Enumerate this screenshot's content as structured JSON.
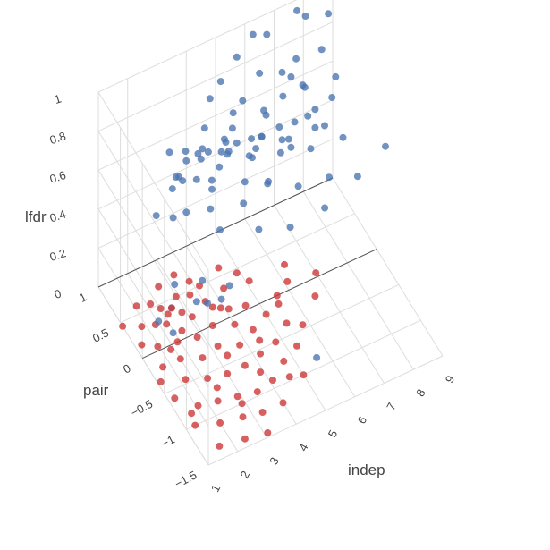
{
  "chart_data": {
    "type": "scatter",
    "projection": "3d",
    "title": "",
    "axes": {
      "x": {
        "label": "indep",
        "range": [
          1,
          9
        ],
        "ticks": [
          "1",
          "2",
          "3",
          "4",
          "5",
          "6",
          "7",
          "8",
          "9"
        ]
      },
      "y": {
        "label": "pair",
        "range": [
          -1.5,
          1
        ],
        "ticks": [
          "−1.5",
          "−1",
          "−0.5",
          "0",
          "0.5",
          "1"
        ]
      },
      "z": {
        "label": "lfdr",
        "range": [
          0,
          1
        ],
        "ticks": [
          "0",
          "0.2",
          "0.4",
          "0.6",
          "0.8",
          "1"
        ]
      }
    },
    "grid": true,
    "legend": "none",
    "colors": {
      "series_blue": "#4a74b0",
      "series_red": "#cc3333",
      "grid": "#dddddd"
    },
    "series": [
      {
        "color": "#4a74b0",
        "points": [
          [
            7.6,
            0.88,
            1.0
          ],
          [
            7.8,
            0.82,
            0.98
          ],
          [
            6.2,
            0.95,
            0.95
          ],
          [
            6.6,
            0.9,
            0.94
          ],
          [
            5.5,
            0.85,
            0.92
          ],
          [
            8.1,
            0.65,
            0.85
          ],
          [
            7.3,
            0.7,
            0.84
          ],
          [
            5.9,
            0.6,
            0.9
          ],
          [
            4.8,
            0.75,
            0.88
          ],
          [
            4.3,
            0.66,
            0.86
          ],
          [
            6.9,
            0.55,
            0.83
          ],
          [
            5.1,
            0.45,
            0.87
          ],
          [
            7.0,
            0.3,
            0.86
          ],
          [
            6.4,
            0.4,
            0.82
          ],
          [
            5.6,
            0.3,
            0.84
          ],
          [
            4.6,
            0.35,
            0.8
          ],
          [
            3.8,
            0.45,
            0.82
          ],
          [
            3.5,
            0.3,
            0.79
          ],
          [
            6.8,
            0.1,
            0.8
          ],
          [
            7.2,
            0.2,
            0.77
          ],
          [
            5.3,
            0.15,
            0.78
          ],
          [
            4.2,
            0.2,
            0.75
          ],
          [
            3.3,
            0.55,
            0.7
          ],
          [
            6.0,
            -0.05,
            0.75
          ],
          [
            6.6,
            -0.1,
            0.72
          ],
          [
            5.8,
            0.05,
            0.7
          ],
          [
            4.9,
            0.1,
            0.72
          ],
          [
            4.0,
            0.25,
            0.68
          ],
          [
            3.1,
            0.4,
            0.72
          ],
          [
            7.7,
            -0.1,
            0.7
          ],
          [
            6.3,
            0.2,
            0.68
          ],
          [
            5.0,
            -0.2,
            0.7
          ],
          [
            4.5,
            0.0,
            0.66
          ],
          [
            3.6,
            0.15,
            0.63
          ],
          [
            2.9,
            0.35,
            0.65
          ],
          [
            6.8,
            0.4,
            0.66
          ],
          [
            5.4,
            0.35,
            0.64
          ],
          [
            4.7,
            0.5,
            0.62
          ],
          [
            3.9,
            0.6,
            0.6
          ],
          [
            7.0,
            -0.25,
            0.6
          ],
          [
            6.1,
            -0.15,
            0.58
          ],
          [
            5.2,
            -0.05,
            0.62
          ],
          [
            4.3,
            -0.1,
            0.6
          ],
          [
            3.4,
            0.05,
            0.58
          ],
          [
            2.8,
            0.2,
            0.55
          ],
          [
            7.6,
            0.25,
            0.64
          ],
          [
            6.5,
            0.55,
            0.6
          ],
          [
            5.7,
            0.65,
            0.56
          ],
          [
            4.9,
            0.7,
            0.58
          ],
          [
            4.1,
            0.8,
            0.54
          ],
          [
            3.2,
            0.7,
            0.52
          ],
          [
            6.2,
            0.75,
            0.5
          ],
          [
            5.5,
            0.85,
            0.48
          ],
          [
            8.5,
            0.6,
            0.7
          ],
          [
            8.0,
            0.35,
            0.72
          ],
          [
            7.3,
            0.55,
            0.76
          ],
          [
            6.9,
            0.75,
            0.78
          ],
          [
            5.9,
            0.45,
            0.74
          ],
          [
            5.0,
            0.6,
            0.76
          ],
          [
            4.4,
            0.4,
            0.74
          ],
          [
            3.7,
            0.3,
            0.76
          ],
          [
            3.0,
            0.1,
            0.74
          ],
          [
            2.6,
            0.45,
            0.78
          ],
          [
            2.4,
            0.25,
            0.68
          ],
          [
            3.5,
            -0.1,
            0.52
          ],
          [
            4.6,
            -0.25,
            0.5
          ],
          [
            5.6,
            -0.3,
            0.46
          ],
          [
            6.7,
            -0.35,
            0.5
          ],
          [
            7.9,
            -0.3,
            0.56
          ],
          [
            2.2,
            0.1,
            0.6
          ],
          [
            9.0,
            -0.2,
            0.6
          ],
          [
            8.7,
            0.9,
            0.9
          ],
          [
            2.3,
            0.55,
            0.44
          ],
          [
            3.6,
            0.9,
            0.42
          ],
          [
            5.2,
            1.0,
            0.4
          ],
          [
            4.8,
            0.95,
            0.3
          ],
          [
            6.0,
            0.9,
            0.36
          ],
          [
            7.2,
            0.95,
            0.34
          ],
          [
            8.4,
            1.0,
            0.3
          ],
          [
            3.3,
            0.3,
            0.02
          ],
          [
            3.6,
            0.25,
            0.01
          ],
          [
            4.0,
            0.2,
            0.02
          ],
          [
            2.6,
            0.4,
            0.0
          ],
          [
            2.2,
            0.1,
            0.01
          ],
          [
            3.8,
            0.5,
            0.02
          ],
          [
            4.5,
            0.35,
            0.0
          ],
          [
            2.0,
            0.3,
            0.01
          ],
          [
            5.6,
            -0.9,
            0.01
          ],
          [
            3.0,
            0.6,
            0.02
          ]
        ]
      },
      {
        "color": "#cc3333",
        "points": [
          [
            2.6,
            0.4,
            0.0
          ],
          [
            2.9,
            0.5,
            0.0
          ],
          [
            3.3,
            0.45,
            0.0
          ],
          [
            2.4,
            0.35,
            0.0
          ],
          [
            3.7,
            0.5,
            0.0
          ],
          [
            3.0,
            0.2,
            0.0
          ],
          [
            3.6,
            0.3,
            0.0
          ],
          [
            2.5,
            0.1,
            0.0
          ],
          [
            3.9,
            0.15,
            0.0
          ],
          [
            4.3,
            0.35,
            0.0
          ],
          [
            1.9,
            0.3,
            0.0
          ],
          [
            2.2,
            0.0,
            0.0
          ],
          [
            2.8,
            -0.05,
            0.0
          ],
          [
            3.4,
            0.0,
            0.0
          ],
          [
            4.0,
            -0.1,
            0.0
          ],
          [
            4.6,
            0.05,
            0.0
          ],
          [
            1.6,
            0.05,
            0.0
          ],
          [
            2.0,
            -0.2,
            0.0
          ],
          [
            2.6,
            -0.3,
            0.0
          ],
          [
            3.2,
            -0.25,
            0.0
          ],
          [
            3.8,
            -0.35,
            0.0
          ],
          [
            4.4,
            -0.25,
            0.0
          ],
          [
            5.0,
            -0.15,
            0.0
          ],
          [
            1.4,
            -0.2,
            0.0
          ],
          [
            1.8,
            -0.45,
            0.0
          ],
          [
            2.4,
            -0.55,
            0.0
          ],
          [
            3.0,
            -0.6,
            0.0
          ],
          [
            3.6,
            -0.6,
            0.0
          ],
          [
            4.2,
            -0.55,
            0.0
          ],
          [
            4.8,
            -0.5,
            0.0
          ],
          [
            5.4,
            -0.35,
            0.0
          ],
          [
            1.2,
            -0.6,
            0.0
          ],
          [
            1.7,
            -0.8,
            0.0
          ],
          [
            2.3,
            -0.85,
            0.0
          ],
          [
            2.9,
            -0.9,
            0.0
          ],
          [
            3.5,
            -0.95,
            0.0
          ],
          [
            4.1,
            -0.9,
            0.0
          ],
          [
            4.7,
            -0.75,
            0.0
          ],
          [
            1.3,
            -1.0,
            0.0
          ],
          [
            2.0,
            -1.1,
            0.0
          ],
          [
            2.7,
            -1.15,
            0.0
          ],
          [
            3.3,
            -1.2,
            0.0
          ],
          [
            4.0,
            -1.2,
            0.0
          ],
          [
            1.6,
            -1.35,
            0.0
          ],
          [
            2.4,
            -1.4,
            0.0
          ],
          [
            3.1,
            -1.45,
            0.0
          ],
          [
            1.5,
            0.35,
            0.0
          ],
          [
            2.1,
            0.55,
            0.0
          ],
          [
            1.7,
            0.6,
            0.0
          ],
          [
            3.2,
            0.75,
            0.0
          ],
          [
            2.6,
            0.7,
            0.0
          ],
          [
            4.5,
            0.6,
            0.0
          ],
          [
            5.1,
            0.3,
            0.0
          ],
          [
            5.6,
            0.0,
            0.0
          ],
          [
            6.1,
            0.1,
            0.0
          ],
          [
            5.8,
            -0.45,
            0.0
          ],
          [
            6.6,
            -0.2,
            0.0
          ],
          [
            5.3,
            -0.65,
            0.0
          ],
          [
            1.2,
            0.15,
            0.0
          ],
          [
            1.1,
            -0.35,
            0.0
          ],
          [
            2.2,
            0.25,
            0.0
          ],
          [
            3.5,
            0.6,
            0.0
          ],
          [
            4.9,
            0.45,
            0.0
          ],
          [
            3.9,
            -0.75,
            0.0
          ],
          [
            2.5,
            -0.7,
            0.0
          ],
          [
            6.3,
            0.3,
            0.0
          ],
          [
            7.0,
            0.05,
            0.0
          ],
          [
            1.0,
            0.45,
            0.0
          ],
          [
            4.6,
            -0.95,
            0.0
          ],
          [
            5.0,
            -1.0,
            0.0
          ],
          [
            3.7,
            0.2,
            0.0
          ],
          [
            2.8,
            0.3,
            0.0
          ],
          [
            4.1,
            0.1,
            0.0
          ],
          [
            1.9,
            -0.05,
            0.0
          ],
          [
            3.3,
            -0.4,
            0.0
          ],
          [
            1.4,
            -0.85,
            0.0
          ],
          [
            2.9,
            -1.0,
            0.0
          ],
          [
            4.4,
            -0.4,
            0.0
          ],
          [
            5.5,
            -0.1,
            0.0
          ],
          [
            2.3,
            0.45,
            0.0
          ]
        ]
      }
    ]
  }
}
